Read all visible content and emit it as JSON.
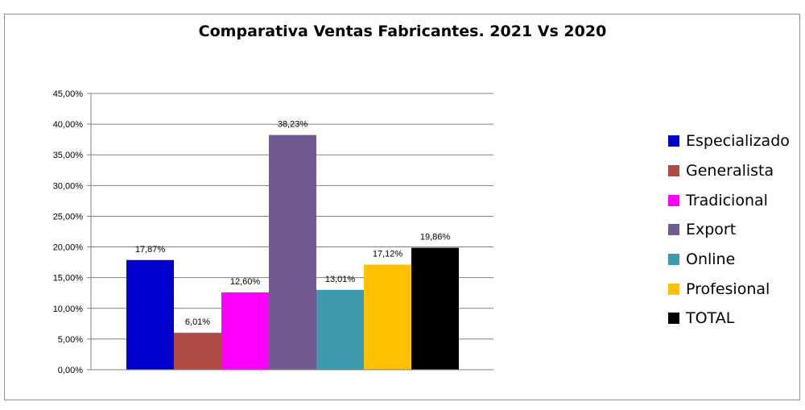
{
  "chart_data": {
    "type": "bar",
    "title": "Comparativa Ventas Fabricantes. 2021 Vs 2020",
    "xlabel": "",
    "ylabel": "",
    "ylim": [
      0,
      45
    ],
    "yticks": [
      "0,00%",
      "5,00%",
      "10,00%",
      "15,00%",
      "20,00%",
      "25,00%",
      "30,00%",
      "35,00%",
      "40,00%",
      "45,00%"
    ],
    "grid": true,
    "legend_position": "right",
    "series": [
      {
        "name": "Especializado",
        "value": 17.87,
        "label": "17,87%",
        "color": "#0000CC"
      },
      {
        "name": "Generalista",
        "value": 6.01,
        "label": "6,01%",
        "color": "#B04A45"
      },
      {
        "name": "Tradicional",
        "value": 12.6,
        "label": "12,60%",
        "color": "#FF00FF"
      },
      {
        "name": "Export",
        "value": 38.23,
        "label": "38,23%",
        "color": "#715A8F"
      },
      {
        "name": "Online",
        "value": 13.01,
        "label": "13,01%",
        "color": "#3E9AAE"
      },
      {
        "name": "Profesional",
        "value": 17.12,
        "label": "17,12%",
        "color": "#FFC000"
      },
      {
        "name": "TOTAL",
        "value": 19.86,
        "label": "19,86%",
        "color": "#000000"
      }
    ]
  }
}
